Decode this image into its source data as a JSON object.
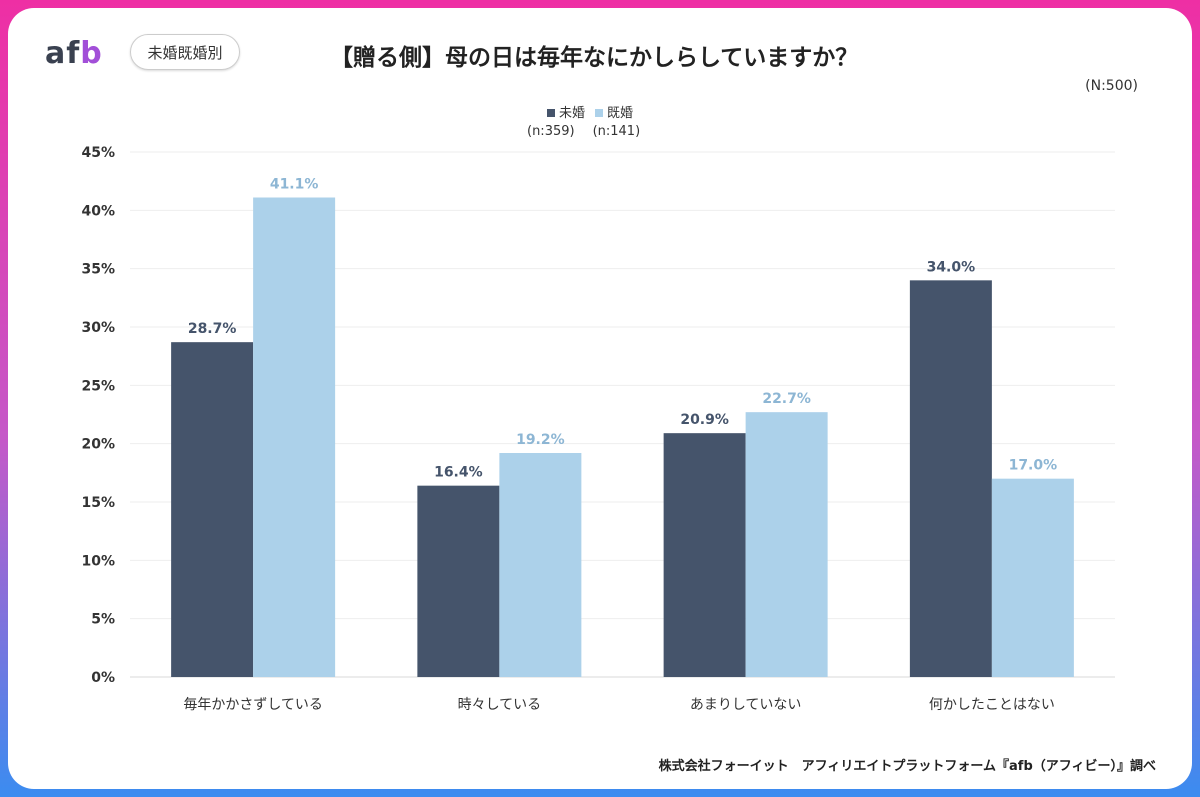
{
  "header": {
    "logo": "afb",
    "badge": "未婚既婚別",
    "title": "【贈る側】母の日は毎年なにかしらしていますか？",
    "total_n": "(N:500)"
  },
  "source": "株式会社フォーイット　アフィリエイトプラットフォーム『afb（アフィビー）』調べ",
  "chart_data": {
    "type": "bar",
    "title": "【贈る側】母の日は毎年なにかしらしていますか？",
    "categories": [
      "毎年かかさずしている",
      "時々している",
      "あまりしていない",
      "何かしたことはない"
    ],
    "series": [
      {
        "name": "未婚",
        "n": "(n:359)",
        "color": "#45546b",
        "values": [
          28.7,
          16.4,
          20.9,
          34.0
        ],
        "labels": [
          "28.7%",
          "16.4%",
          "20.9%",
          "34.0%"
        ]
      },
      {
        "name": "既婚",
        "n": "(n:141)",
        "color": "#acd1ea",
        "values": [
          41.1,
          19.2,
          22.7,
          17.0
        ],
        "labels": [
          "41.1%",
          "19.2%",
          "22.7%",
          "17.0%"
        ]
      }
    ],
    "ylim": [
      0,
      45
    ],
    "yticks": [
      "0%",
      "5%",
      "10%",
      "15%",
      "20%",
      "25%",
      "30%",
      "35%",
      "40%",
      "45%"
    ],
    "grid": true,
    "legend": "top-center"
  }
}
